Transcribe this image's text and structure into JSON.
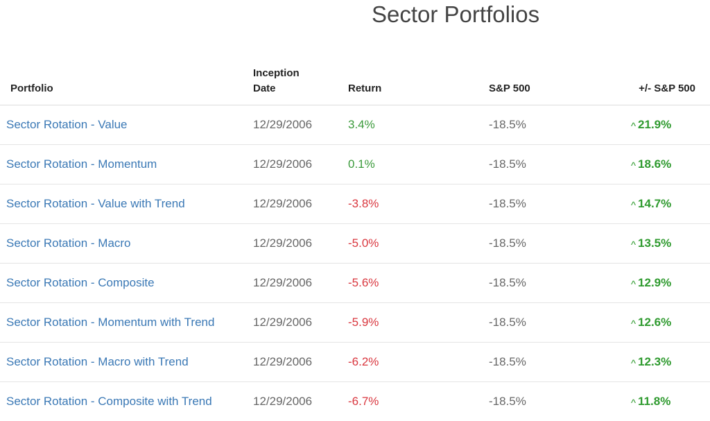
{
  "page": {
    "title": "Sector Portfolios"
  },
  "table": {
    "headers": {
      "portfolio": "Portfolio",
      "inception_line1": "Inception",
      "inception_line2": "Date",
      "return": "Return",
      "sp500": "S&P 500",
      "diff": "+/- S&P 500"
    },
    "rows": [
      {
        "name": "Sector Rotation - Value",
        "inception": "12/29/2006",
        "return": "3.4%",
        "return_sign": "pos",
        "sp500": "-18.5%",
        "diff": "21.9%"
      },
      {
        "name": "Sector Rotation - Momentum",
        "inception": "12/29/2006",
        "return": "0.1%",
        "return_sign": "pos",
        "sp500": "-18.5%",
        "diff": "18.6%"
      },
      {
        "name": "Sector Rotation - Value with Trend",
        "inception": "12/29/2006",
        "return": "-3.8%",
        "return_sign": "neg",
        "sp500": "-18.5%",
        "diff": "14.7%"
      },
      {
        "name": "Sector Rotation - Macro",
        "inception": "12/29/2006",
        "return": "-5.0%",
        "return_sign": "neg",
        "sp500": "-18.5%",
        "diff": "13.5%"
      },
      {
        "name": "Sector Rotation - Composite",
        "inception": "12/29/2006",
        "return": "-5.6%",
        "return_sign": "neg",
        "sp500": "-18.5%",
        "diff": "12.9%"
      },
      {
        "name": "Sector Rotation - Momentum with Trend",
        "inception": "12/29/2006",
        "return": "-5.9%",
        "return_sign": "neg",
        "sp500": "-18.5%",
        "diff": "12.6%"
      },
      {
        "name": "Sector Rotation - Macro with Trend",
        "inception": "12/29/2006",
        "return": "-6.2%",
        "return_sign": "neg",
        "sp500": "-18.5%",
        "diff": "12.3%"
      },
      {
        "name": "Sector Rotation - Composite with Trend",
        "inception": "12/29/2006",
        "return": "-6.7%",
        "return_sign": "neg",
        "sp500": "-18.5%",
        "diff": "11.8%"
      }
    ]
  },
  "icons": {
    "diff_indicator": "caret-up-icon"
  },
  "colors": {
    "link": "#3a78b5",
    "positive": "#3a9a3a",
    "negative": "#d9363e",
    "outperform": "#2e9a2e"
  }
}
